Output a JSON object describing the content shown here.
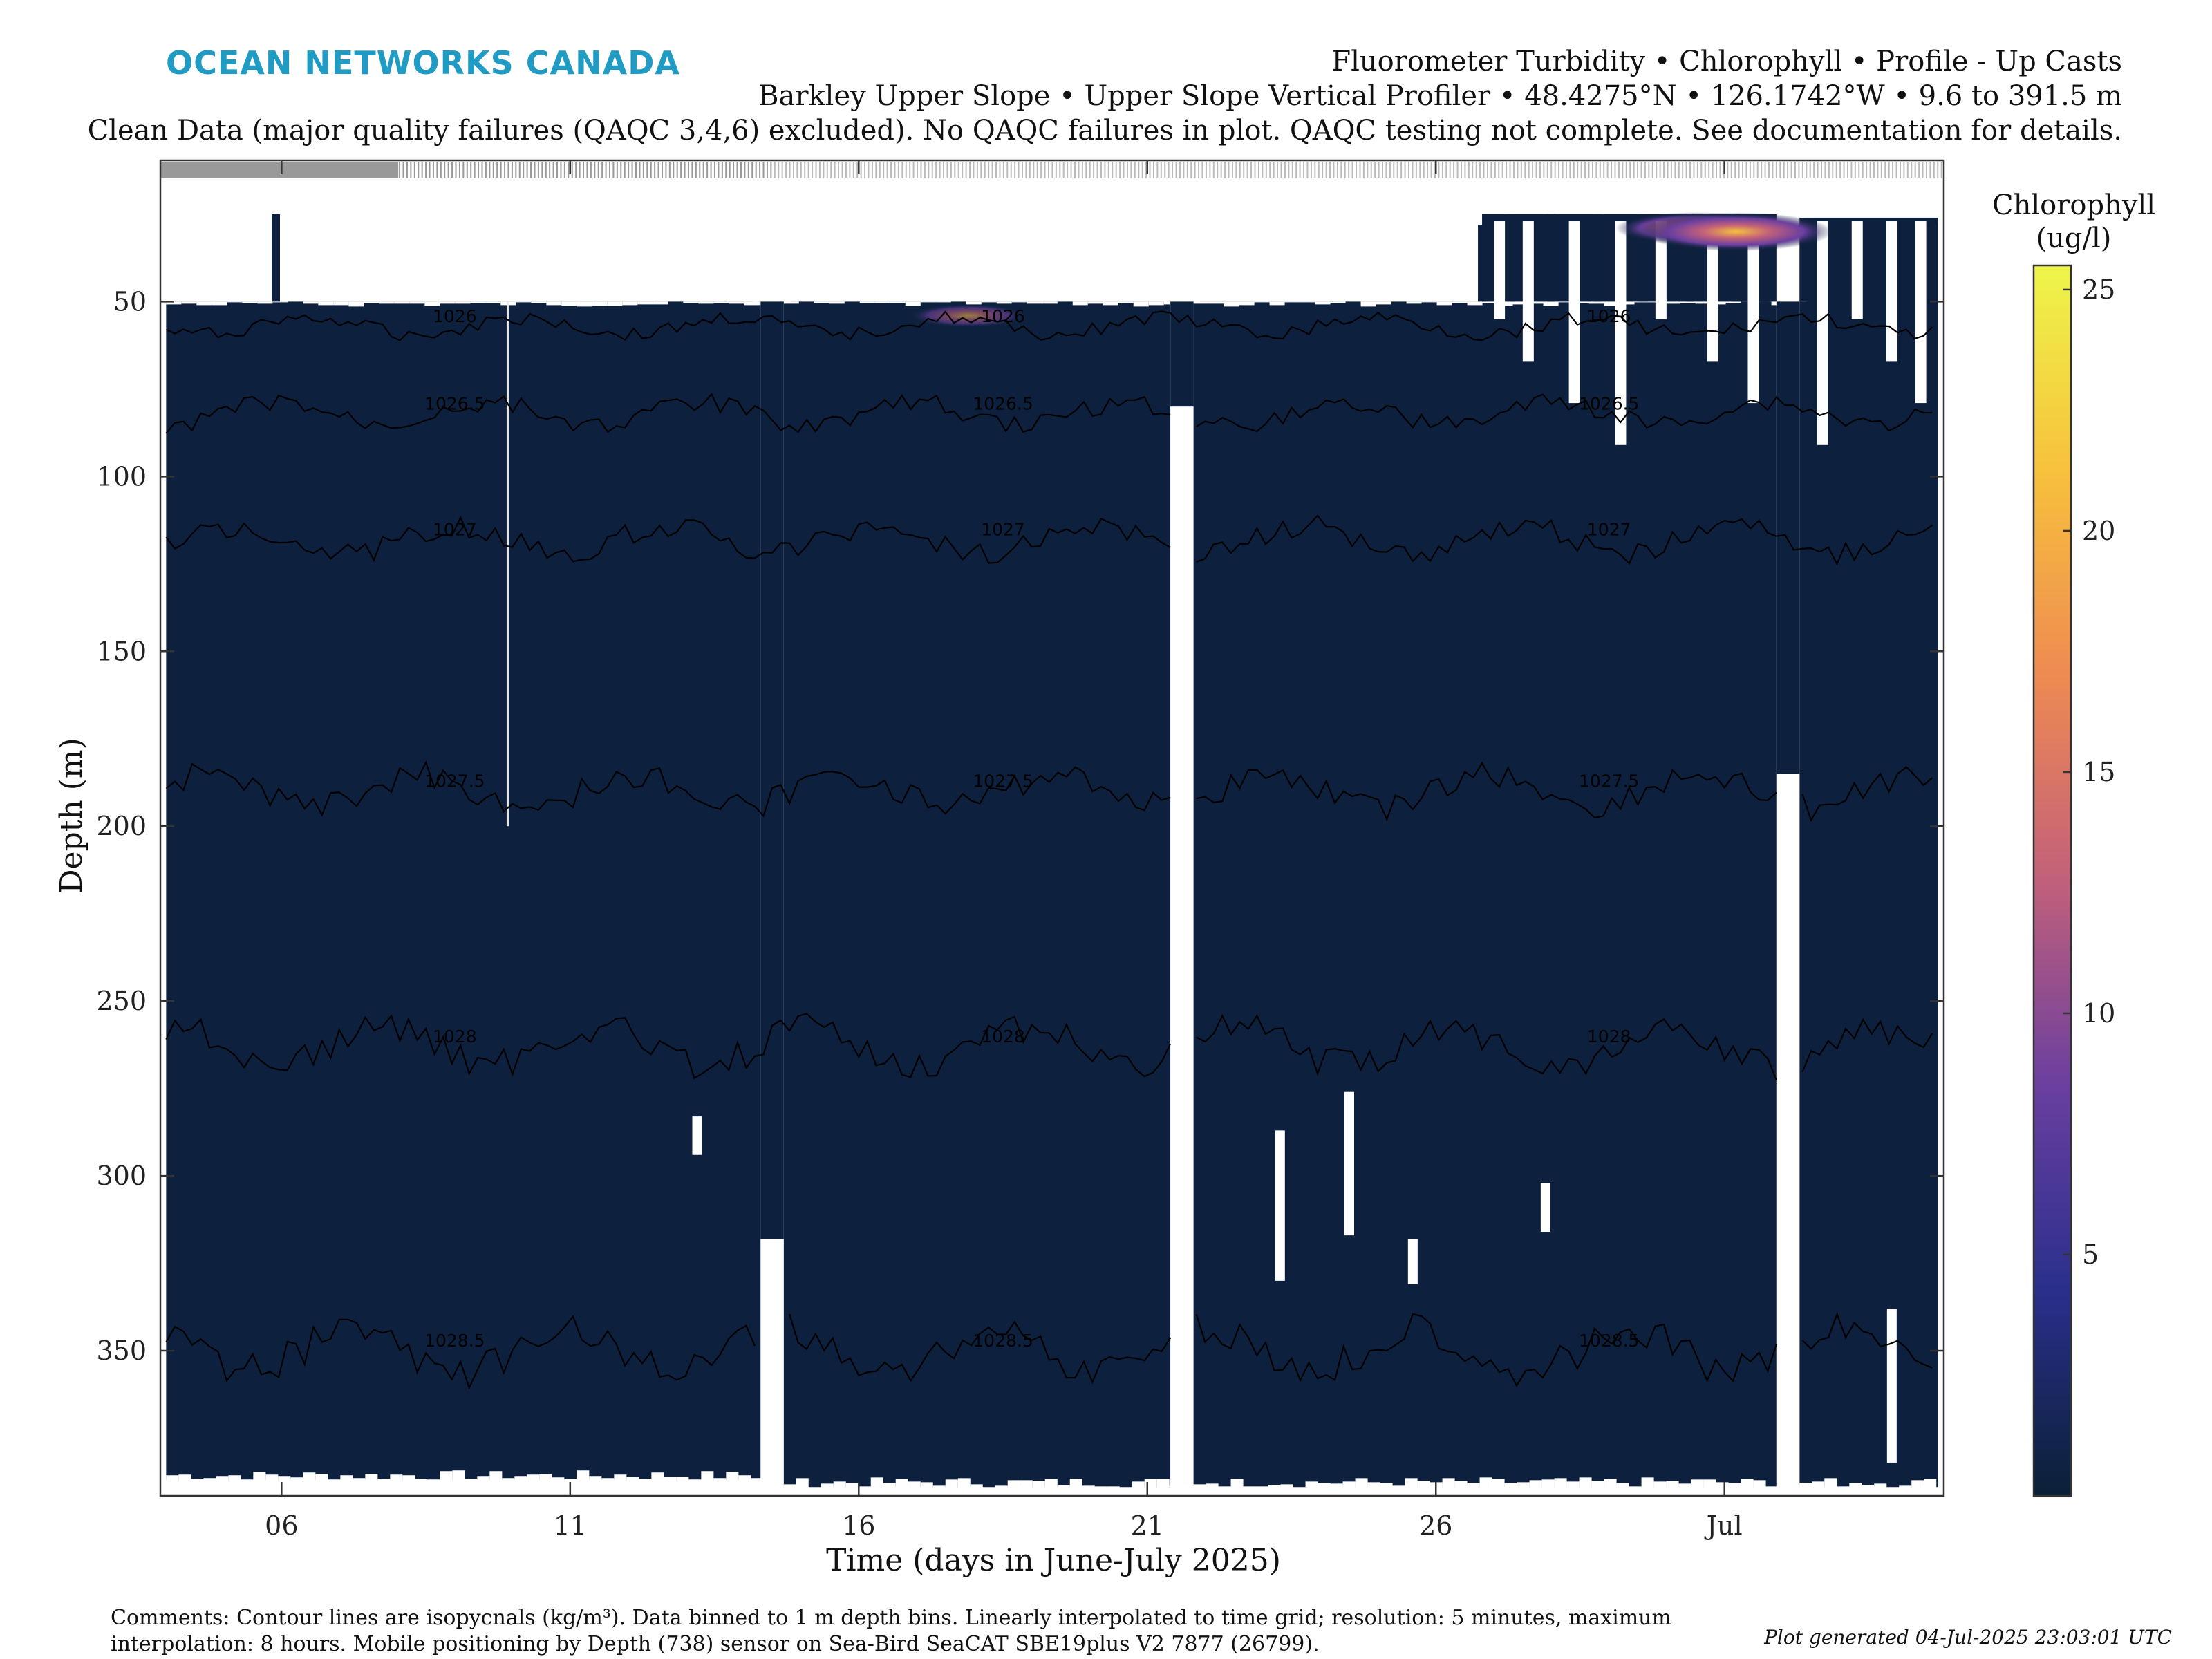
{
  "logo_text": "OCEAN NETWORKS CANADA",
  "title_lines": [
    "Fluorometer Turbidity • Chlorophyll • Profile - Up Casts",
    "Barkley Upper Slope • Upper Slope Vertical Profiler • 48.4275°N • 126.1742°W • 9.6 to 391.5 m",
    "Clean Data (major quality failures (QAQC 3,4,6) excluded). No QAQC failures in plot. QAQC testing not complete. See documentation for details."
  ],
  "colorbar": {
    "title_line1": "Chlorophyll",
    "title_line2": "(ug/l)",
    "min": 0,
    "max": 25.5,
    "ticks": [
      "5",
      "10",
      "15",
      "20",
      "25"
    ],
    "colors": [
      "#0a2036",
      "#2a2f8c",
      "#6a3fa0",
      "#c2607a",
      "#ee8a52",
      "#f7c13c",
      "#eef54a"
    ]
  },
  "comments": "Comments: Contour lines are isopycnals (kg/m³). Data binned to 1 m depth bins. Linearly interpolated to time grid; resolution: 5 minutes, maximum interpolation: 8 hours. Mobile positioning by Depth (738) sensor on Sea-Bird SeaCAT SBE19plus V2 7877 (26799).",
  "generated": "Plot generated 04-Jul-2025 23:03:01 UTC",
  "chart_data": {
    "type": "heatmap",
    "xlabel": "Time (days in June-July 2025)",
    "ylabel": "Depth (m)",
    "x_range_days": [
      3.9,
      34.8
    ],
    "y_range_m": [
      9.6,
      391.5
    ],
    "y_reversed": true,
    "x_ticks": [
      {
        "day": 6,
        "label": "06"
      },
      {
        "day": 11,
        "label": "11"
      },
      {
        "day": 16,
        "label": "16"
      },
      {
        "day": 21,
        "label": "21"
      },
      {
        "day": 26,
        "label": "26"
      },
      {
        "day": 31,
        "label": "Jul"
      }
    ],
    "y_ticks": [
      50,
      100,
      150,
      200,
      250,
      300,
      350
    ],
    "background_value": 0.4,
    "data_blocks": [
      {
        "start": 4.0,
        "end": 14.3,
        "top": 50,
        "bottom": 387
      },
      {
        "start": 14.7,
        "end": 21.4,
        "top": 50,
        "bottom": 389
      },
      {
        "start": 21.8,
        "end": 31.9,
        "top": 50,
        "bottom": 389
      },
      {
        "start": 32.3,
        "end": 34.7,
        "top": 26,
        "bottom": 389
      }
    ],
    "gaps": [
      {
        "start": 14.3,
        "end": 14.7,
        "from_depth": 318
      },
      {
        "start": 21.4,
        "end": 21.8,
        "from_depth": 80
      },
      {
        "start": 31.9,
        "end": 32.3,
        "from_depth": 185
      }
    ],
    "shallow_casts": [
      {
        "day": 5.9,
        "top": 25
      },
      {
        "day": 26.8,
        "top": 28
      },
      {
        "day": 27.3,
        "top": 25
      },
      {
        "day": 28.0,
        "top": 25
      },
      {
        "day": 28.8,
        "top": 25
      },
      {
        "day": 29.6,
        "top": 25
      },
      {
        "day": 30.4,
        "top": 25
      },
      {
        "day": 31.2,
        "top": 25
      },
      {
        "day": 31.7,
        "top": 25
      }
    ],
    "isopycnals": [
      {
        "label": "1026",
        "depth": 57
      },
      {
        "label": "1026.5",
        "depth": 82
      },
      {
        "label": "1027",
        "depth": 118
      },
      {
        "label": "1027.5",
        "depth": 190
      },
      {
        "label": "1028",
        "depth": 263
      },
      {
        "label": "1028.5",
        "depth": 350
      }
    ],
    "chlorophyll_peaks": [
      {
        "day": 17.9,
        "depth": 54,
        "value": 6
      },
      {
        "day": 30.5,
        "depth": 29,
        "value": 14
      },
      {
        "day": 31.2,
        "depth": 30,
        "value": 20
      }
    ]
  }
}
